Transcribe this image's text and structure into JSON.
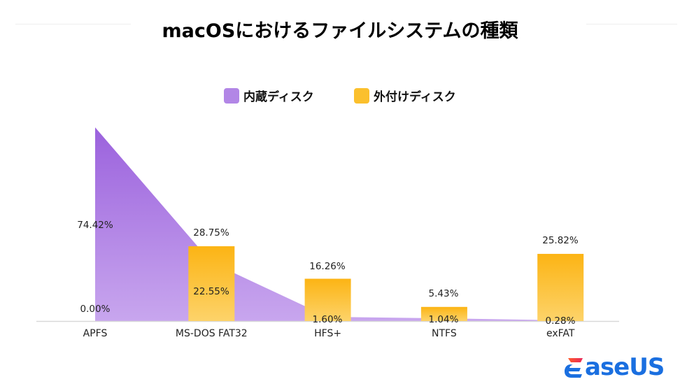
{
  "title": "macOSにおけるファイルシステムの種類",
  "legend": [
    {
      "label": "内蔵ディスク",
      "color": "#b286e6"
    },
    {
      "label": "外付けディスク",
      "color": "#fbc02d"
    }
  ],
  "brand": {
    "logo_text": "aseUS",
    "logo_full": "EaseUS",
    "color": "#1a6fe0"
  },
  "chart_data": {
    "type": "bar",
    "title": "macOSにおけるファイルシステムの種類",
    "xlabel": "",
    "ylabel": "",
    "categories": [
      "APFS",
      "MS-DOS FAT32",
      "HFS+",
      "NTFS",
      "exFAT"
    ],
    "series": [
      {
        "name": "内蔵ディスク",
        "type": "area",
        "color": "#b286e6",
        "values": [
          74.42,
          22.55,
          1.6,
          1.04,
          0.28
        ],
        "labels": [
          "74.42%",
          "22.55%",
          "1.60%",
          "1.04%",
          "0.28%"
        ]
      },
      {
        "name": "外付けディスク",
        "type": "bar",
        "color": "#fbc02d",
        "values": [
          0.0,
          28.75,
          16.26,
          5.43,
          25.82
        ],
        "labels": [
          "0.00%",
          "28.75%",
          "16.26%",
          "5.43%",
          "25.82%"
        ]
      }
    ],
    "ylim": [
      0,
      80
    ],
    "grid": false,
    "legend_position": "top"
  }
}
